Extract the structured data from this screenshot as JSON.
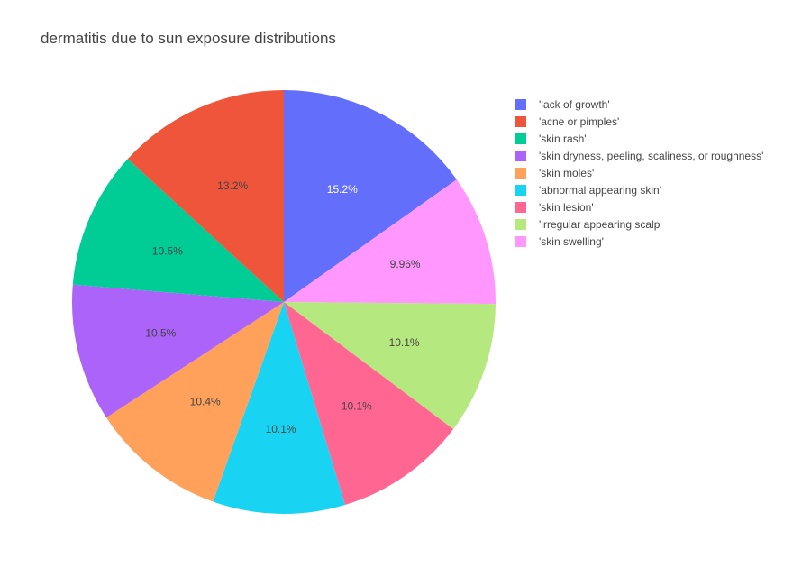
{
  "chart_data": {
    "type": "pie",
    "title": "dermatitis due to sun exposure distributions",
    "direction": "clockwise",
    "start": "12 o'clock",
    "legend_position": "top-right",
    "slices": [
      {
        "label": "'lack of growth'",
        "value": 15.2,
        "text": "15.2%",
        "color": "#636efa",
        "text_color": "#ffffff"
      },
      {
        "label": "'skin swelling'",
        "value": 9.96,
        "text": "9.96%",
        "color": "#ff97ff",
        "text_color": "#444444"
      },
      {
        "label": "'irregular appearing scalp'",
        "value": 10.1,
        "text": "10.1%",
        "color": "#b6e880",
        "text_color": "#444444"
      },
      {
        "label": "'skin lesion'",
        "value": 10.1,
        "text": "10.1%",
        "color": "#ff6692",
        "text_color": "#444444"
      },
      {
        "label": "'abnormal appearing skin'",
        "value": 10.1,
        "text": "10.1%",
        "color": "#19d3f3",
        "text_color": "#444444"
      },
      {
        "label": "'skin moles'",
        "value": 10.4,
        "text": "10.4%",
        "color": "#ffa15a",
        "text_color": "#444444"
      },
      {
        "label": "'skin dryness, peeling, scaliness, or roughness'",
        "value": 10.5,
        "text": "10.5%",
        "color": "#ab63fa",
        "text_color": "#444444"
      },
      {
        "label": "'skin rash'",
        "value": 10.5,
        "text": "10.5%",
        "color": "#00cc96",
        "text_color": "#444444"
      },
      {
        "label": "'acne or pimples'",
        "value": 13.2,
        "text": "13.2%",
        "color": "#ef553b",
        "text_color": "#444444"
      }
    ],
    "legend": [
      {
        "label": "'lack of growth'",
        "color": "#636efa"
      },
      {
        "label": "'acne or pimples'",
        "color": "#ef553b"
      },
      {
        "label": "'skin rash'",
        "color": "#00cc96"
      },
      {
        "label": "'skin dryness, peeling, scaliness, or roughness'",
        "color": "#ab63fa"
      },
      {
        "label": "'skin moles'",
        "color": "#ffa15a"
      },
      {
        "label": "'abnormal appearing skin'",
        "color": "#19d3f3"
      },
      {
        "label": "'skin lesion'",
        "color": "#ff6692"
      },
      {
        "label": "'irregular appearing scalp'",
        "color": "#b6e880"
      },
      {
        "label": "'skin swelling'",
        "color": "#ff97ff"
      }
    ]
  }
}
